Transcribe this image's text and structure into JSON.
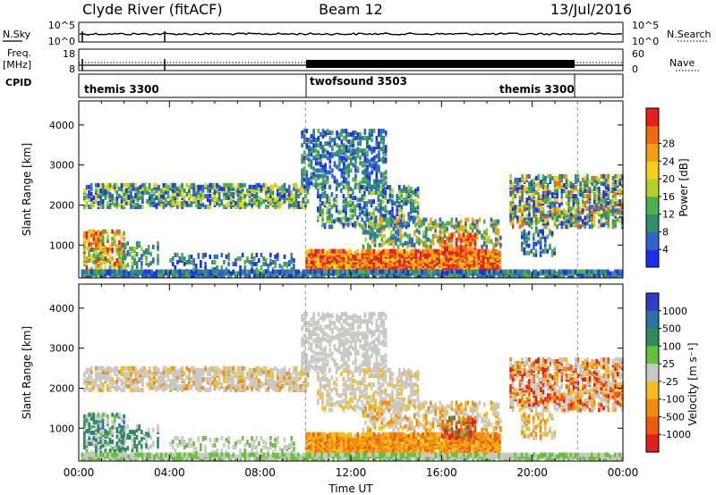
{
  "header": {
    "station": "Clyde River (fitACF)",
    "beam": "Beam 12",
    "date": "13/Jul/2016"
  },
  "nsky_panel": {
    "left_label": "N.Sky",
    "right_label": "N.Search",
    "left_ticks": [
      "10^5",
      "10^0"
    ],
    "right_ticks": [
      "10^5",
      "10^0"
    ]
  },
  "freq_panel": {
    "left_label_1": "Freq.",
    "left_label_2": "[MHz]",
    "right_label": "Nave",
    "left_ticks": [
      "18",
      "8"
    ],
    "right_ticks": [
      "60",
      "0"
    ]
  },
  "cpid_panel": {
    "label": "CPID",
    "modes": [
      {
        "name": "themis 3300",
        "start_hour": 0,
        "end_hour": 10
      },
      {
        "name": "twofsound 3503",
        "start_hour": 10,
        "end_hour": 22
      },
      {
        "name": "themis 3300",
        "start_hour": 22,
        "end_hour": 24
      }
    ]
  },
  "chart_data": [
    {
      "type": "heatmap",
      "name": "power",
      "ylabel": "Slant Range [km]",
      "x_hours": [
        0,
        24
      ],
      "xlim_hours": [
        0,
        24
      ],
      "ylim": [
        180,
        4600
      ],
      "yticks": [
        "1000",
        "2000",
        "3000",
        "4000"
      ],
      "colorbar": {
        "label": "Power [dB]",
        "range": [
          0,
          32
        ],
        "ticks": [
          "4",
          "8",
          "12",
          "16",
          "20",
          "24",
          "28"
        ],
        "colors": [
          "#1c2ff0",
          "#2f66c8",
          "#2d8f6b",
          "#4fb04a",
          "#b5cf2d",
          "#f5d21a",
          "#f3a016",
          "#ee6a12",
          "#e3201c"
        ]
      }
    },
    {
      "type": "heatmap",
      "name": "velocity",
      "ylabel": "Slant Range [km]",
      "xlabel": "Time UT",
      "xlim_hours": [
        0,
        24
      ],
      "ylim": [
        180,
        4600
      ],
      "yticks": [
        "1000",
        "2000",
        "3000",
        "4000"
      ],
      "xticks": [
        "00:00",
        "04:00",
        "08:00",
        "12:00",
        "16:00",
        "20:00",
        "00:00"
      ],
      "colorbar": {
        "label": "Velocity [m s⁻¹]",
        "ticks": [
          "1000",
          "500",
          "100",
          "25",
          "-25",
          "-100",
          "-500",
          "-1000"
        ],
        "colors": [
          "#2e3cc8",
          "#2b72a8",
          "#2e8c5a",
          "#63c23c",
          "#c8c8c4",
          "#f2be1c",
          "#f28a10",
          "#ee5a10",
          "#e01e1e"
        ]
      }
    }
  ]
}
